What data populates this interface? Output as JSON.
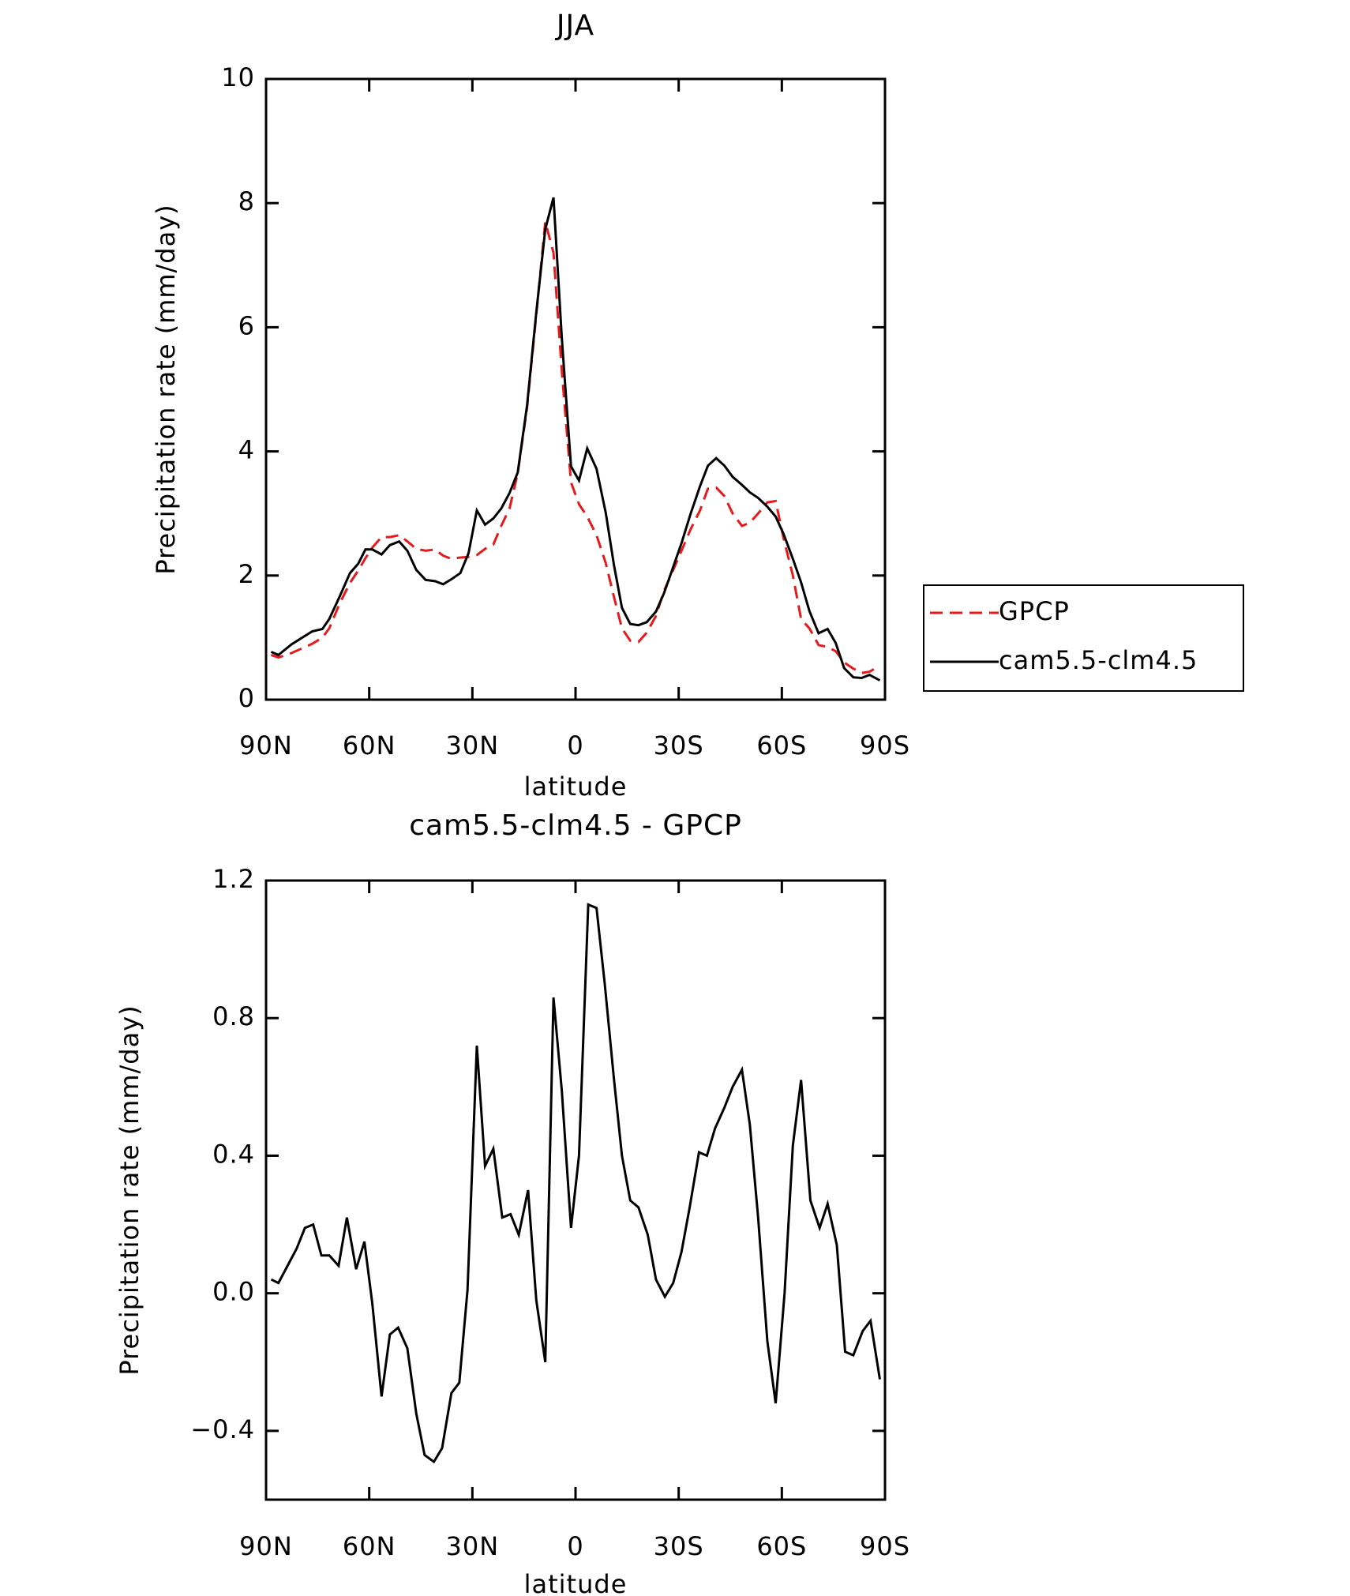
{
  "chart_data": [
    {
      "type": "line",
      "title": "JJA",
      "xlabel": "latitude",
      "ylabel": "Precipitation rate (mm/day)",
      "x": [
        88.5,
        86.4,
        82.6,
        76.6,
        73.6,
        71.6,
        68.6,
        65.6,
        63.2,
        61.1,
        59.1,
        56.4,
        54.0,
        51.3,
        48.9,
        46.3,
        43.6,
        40.9,
        38.5,
        36.1,
        33.5,
        31.1,
        28.7,
        26.3,
        23.9,
        21.6,
        19.2,
        16.8,
        14.1,
        11.4,
        8.8,
        6.4,
        4.0,
        1.3,
        -1.0,
        -3.4,
        -6.1,
        -8.8,
        -11.2,
        -13.5,
        -15.9,
        -18.3,
        -20.7,
        -23.4,
        -25.7,
        -28.1,
        -30.8,
        -33.5,
        -36.2,
        -38.5,
        -40.9,
        -43.3,
        -45.7,
        -48.4,
        -50.7,
        -53.1,
        -55.8,
        -58.2,
        -60.5,
        -63.2,
        -65.6,
        -68.0,
        -70.7,
        -73.3,
        -75.7,
        -78.1,
        -80.8,
        -83.2,
        -85.5,
        -88.5
      ],
      "series": [
        {
          "name": "GPCP",
          "color": "#e8191b",
          "dash": true,
          "values": [
            0.72,
            0.68,
            0.75,
            0.9,
            1.0,
            1.15,
            1.55,
            1.88,
            2.08,
            2.28,
            2.45,
            2.62,
            2.62,
            2.65,
            2.55,
            2.43,
            2.4,
            2.42,
            2.32,
            2.27,
            2.29,
            2.3,
            2.33,
            2.43,
            2.5,
            2.8,
            3.08,
            3.65,
            4.7,
            6.2,
            7.7,
            7.2,
            5.3,
            3.5,
            3.15,
            2.95,
            2.65,
            2.2,
            1.65,
            1.15,
            0.95,
            0.93,
            1.08,
            1.35,
            1.75,
            2.05,
            2.4,
            2.75,
            3.05,
            3.4,
            3.42,
            3.28,
            3.0,
            2.8,
            2.85,
            3.0,
            3.18,
            3.2,
            2.6,
            2.0,
            1.3,
            1.15,
            0.88,
            0.85,
            0.78,
            0.6,
            0.5,
            0.43,
            0.45,
            0.55
          ]
        },
        {
          "name": "cam5.5-clm4.5",
          "color": "#000000",
          "dash": false,
          "values": [
            0.77,
            0.72,
            0.89,
            1.1,
            1.14,
            1.3,
            1.66,
            2.04,
            2.19,
            2.42,
            2.42,
            2.34,
            2.49,
            2.55,
            2.4,
            2.09,
            1.93,
            1.91,
            1.86,
            1.94,
            2.04,
            2.36,
            3.05,
            2.82,
            2.92,
            3.08,
            3.33,
            3.66,
            4.74,
            6.24,
            7.58,
            8.09,
            5.83,
            3.76,
            3.53,
            4.05,
            3.72,
            3.01,
            2.16,
            1.48,
            1.22,
            1.2,
            1.25,
            1.42,
            1.71,
            2.09,
            2.52,
            3.0,
            3.44,
            3.77,
            3.89,
            3.77,
            3.59,
            3.46,
            3.34,
            3.25,
            3.11,
            2.95,
            2.67,
            2.27,
            1.89,
            1.43,
            1.07,
            1.14,
            0.91,
            0.51,
            0.36,
            0.35,
            0.4,
            0.31
          ]
        }
      ],
      "xlim": [
        90,
        -90
      ],
      "xticks": [
        {
          "value": 90,
          "label": "90N"
        },
        {
          "value": 60,
          "label": "60N"
        },
        {
          "value": 30,
          "label": "30N"
        },
        0,
        {
          "value": -30,
          "label": "30S"
        },
        {
          "value": -60,
          "label": "60S"
        },
        {
          "value": -90,
          "label": "90S"
        }
      ],
      "ylim": [
        0,
        10
      ],
      "yticks": [
        0,
        2,
        4,
        6,
        8,
        10
      ],
      "legend": "right"
    },
    {
      "type": "line",
      "title": "cam5.5-clm4.5 - GPCP",
      "xlabel": "latitude",
      "ylabel": "Precipitation rate (mm/day)",
      "x": [
        88.5,
        86.4,
        81.1,
        78.7,
        76.3,
        73.9,
        71.6,
        68.9,
        66.5,
        63.8,
        61.4,
        59.1,
        56.4,
        54.0,
        51.6,
        48.9,
        46.3,
        43.9,
        41.2,
        38.8,
        36.1,
        33.8,
        31.4,
        28.7,
        26.3,
        23.9,
        21.3,
        18.9,
        16.5,
        13.8,
        11.4,
        8.8,
        6.4,
        4.0,
        1.3,
        -1.0,
        -3.7,
        -6.1,
        -8.5,
        -11.2,
        -13.5,
        -15.9,
        -18.3,
        -21.0,
        -23.4,
        -26.0,
        -28.4,
        -30.8,
        -33.2,
        -35.9,
        -38.2,
        -40.6,
        -43.3,
        -45.7,
        -48.4,
        -50.7,
        -53.1,
        -55.8,
        -58.2,
        -60.8,
        -63.2,
        -65.6,
        -68.3,
        -71.0,
        -73.3,
        -76.0,
        -78.4,
        -80.8,
        -83.5,
        -85.8,
        -88.5
      ],
      "values": [
        0.04,
        0.03,
        0.13,
        0.19,
        0.2,
        0.11,
        0.11,
        0.08,
        0.22,
        0.07,
        0.15,
        -0.03,
        -0.3,
        -0.12,
        -0.1,
        -0.16,
        -0.35,
        -0.47,
        -0.49,
        -0.45,
        -0.29,
        -0.26,
        0.01,
        0.72,
        0.37,
        0.42,
        0.22,
        0.23,
        0.17,
        0.3,
        -0.02,
        -0.2,
        0.86,
        0.59,
        0.19,
        0.4,
        1.13,
        1.12,
        0.9,
        0.62,
        0.4,
        0.27,
        0.25,
        0.17,
        0.04,
        -0.01,
        0.03,
        0.12,
        0.25,
        0.41,
        0.4,
        0.48,
        0.54,
        0.6,
        0.65,
        0.49,
        0.22,
        -0.14,
        -0.32,
        0.0,
        0.43,
        0.62,
        0.27,
        0.19,
        0.26,
        0.14,
        -0.17,
        -0.18,
        -0.11,
        -0.08,
        -0.25
      ],
      "color": "#000000",
      "xlim": [
        90,
        -90
      ],
      "xticks": [
        {
          "value": 90,
          "label": "90N"
        },
        {
          "value": 60,
          "label": "60N"
        },
        {
          "value": 30,
          "label": "30N"
        },
        0,
        {
          "value": -30,
          "label": "30S"
        },
        {
          "value": -60,
          "label": "60S"
        },
        {
          "value": -90,
          "label": "90S"
        }
      ],
      "ylim": [
        -0.6,
        1.2
      ],
      "yticks": [
        {
          "value": -0.4,
          "label": "−0.4"
        },
        {
          "value": 0,
          "label": "0.0"
        },
        0.4,
        0.8,
        1.2
      ]
    }
  ]
}
